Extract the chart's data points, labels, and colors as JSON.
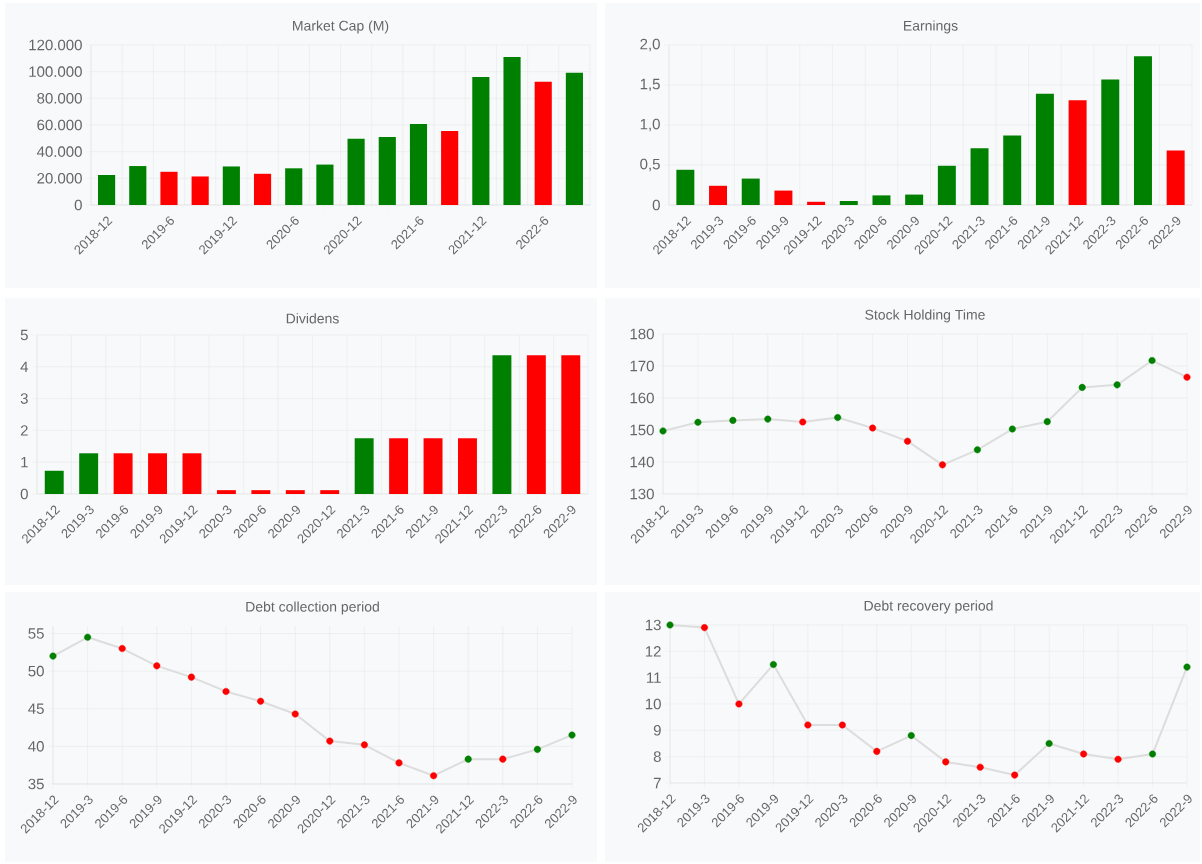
{
  "chart_data": [
    {
      "type": "bar",
      "title": "Market Cap (M)",
      "categories": [
        "2018-12",
        null,
        "2019-6",
        null,
        "2019-12",
        null,
        "2020-6",
        null,
        "2020-12",
        null,
        "2021-6",
        null,
        "2021-12",
        null,
        "2022-6",
        null
      ],
      "values": [
        22500,
        29200,
        24900,
        21400,
        28900,
        23400,
        27500,
        30300,
        49700,
        50900,
        60700,
        55500,
        96000,
        111000,
        92500,
        99100
      ],
      "colors": [
        "#008000",
        "#008000",
        "#ff0000",
        "#ff0000",
        "#008000",
        "#ff0000",
        "#008000",
        "#008000",
        "#008000",
        "#008000",
        "#008000",
        "#ff0000",
        "#008000",
        "#008000",
        "#ff0000",
        "#008000"
      ],
      "ylim": [
        0,
        120000
      ],
      "yticks": [
        0,
        {
          "value": 20000,
          "label": "20.000"
        },
        {
          "value": 40000,
          "label": "40.000"
        },
        {
          "value": 60000,
          "label": "60.000"
        },
        {
          "value": 80000,
          "label": "80.000"
        },
        {
          "value": 100000,
          "label": "100.000"
        },
        {
          "value": 120000,
          "label": "120.000"
        }
      ],
      "grid": true
    },
    {
      "type": "bar",
      "title": "Earnings",
      "categories": [
        "2018-12",
        "2019-3",
        "2019-6",
        "2019-9",
        "2019-12",
        "2020-3",
        "2020-6",
        "2020-9",
        "2020-12",
        "2021-3",
        "2021-6",
        "2021-9",
        "2021-12",
        "2022-3",
        "2022-6",
        "2022-9"
      ],
      "values": [
        0.44,
        0.24,
        0.33,
        0.18,
        0.04,
        0.05,
        0.12,
        0.13,
        0.49,
        0.71,
        0.87,
        1.39,
        1.31,
        1.57,
        1.86,
        0.68
      ],
      "colors": [
        "#008000",
        "#ff0000",
        "#008000",
        "#ff0000",
        "#ff0000",
        "#008000",
        "#008000",
        "#008000",
        "#008000",
        "#008000",
        "#008000",
        "#008000",
        "#ff0000",
        "#008000",
        "#008000",
        "#ff0000"
      ],
      "ylim": [
        0,
        2
      ],
      "yticks": [
        0,
        {
          "value": 0.5,
          "label": "0,5"
        },
        {
          "value": 1,
          "label": "1,0"
        },
        {
          "value": 1.5,
          "label": "1,5"
        },
        {
          "value": 2,
          "label": "2,0"
        }
      ],
      "grid": true
    },
    {
      "type": "bar",
      "title": "Dividens",
      "categories": [
        "2018-12",
        "2019-3",
        "2019-6",
        "2019-9",
        "2019-12",
        "2020-3",
        "2020-6",
        "2020-9",
        "2020-12",
        "2021-3",
        "2021-6",
        "2021-9",
        "2021-12",
        "2022-3",
        "2022-6",
        "2022-9"
      ],
      "values": [
        0.73,
        1.28,
        1.28,
        1.28,
        1.28,
        0.12,
        0.12,
        0.12,
        0.12,
        1.75,
        1.75,
        1.75,
        1.75,
        4.36,
        4.36,
        4.36
      ],
      "colors": [
        "#008000",
        "#008000",
        "#ff0000",
        "#ff0000",
        "#ff0000",
        "#ff0000",
        "#ff0000",
        "#ff0000",
        "#ff0000",
        "#008000",
        "#ff0000",
        "#ff0000",
        "#ff0000",
        "#008000",
        "#ff0000",
        "#ff0000"
      ],
      "ylim": [
        0,
        5
      ],
      "yticks": [
        0,
        1,
        2,
        3,
        4,
        5
      ],
      "grid": true
    },
    {
      "type": "line",
      "title": "Stock Holding Time",
      "categories": [
        "2018-12",
        "2019-3",
        "2019-6",
        "2019-9",
        "2019-12",
        "2020-3",
        "2020-6",
        "2020-9",
        "2020-12",
        "2021-3",
        "2021-6",
        "2021-9",
        "2021-12",
        "2022-3",
        "2022-6",
        "2022-9"
      ],
      "values": [
        149.7,
        152.4,
        153.0,
        153.4,
        152.5,
        153.9,
        150.6,
        146.5,
        139.1,
        143.8,
        150.3,
        152.6,
        163.3,
        164.1,
        171.7,
        166.5
      ],
      "color": "#dddddd",
      "colors": [
        "#008000",
        "#008000",
        "#008000",
        "#008000",
        "#ff0000",
        "#008000",
        "#ff0000",
        "#ff0000",
        "#ff0000",
        "#008000",
        "#008000",
        "#008000",
        "#008000",
        "#008000",
        "#008000",
        "#ff0000"
      ],
      "ylim": [
        130,
        180
      ],
      "yticks": [
        130,
        140,
        150,
        160,
        170,
        180
      ],
      "grid": true,
      "marker": "circle"
    },
    {
      "type": "line",
      "title": "Debt collection period",
      "categories": [
        "2018-12",
        "2019-3",
        "2019-6",
        "2019-9",
        "2019-12",
        "2020-3",
        "2020-6",
        "2020-9",
        "2020-12",
        "2021-3",
        "2021-6",
        "2021-9",
        "2021-12",
        "2022-3",
        "2022-6",
        "2022-9"
      ],
      "values": [
        52.0,
        54.5,
        53.0,
        50.7,
        49.2,
        47.3,
        46.0,
        44.3,
        40.7,
        40.2,
        37.8,
        36.1,
        38.3,
        38.3,
        39.6,
        41.5
      ],
      "color": "#dddddd",
      "colors": [
        "#008000",
        "#008000",
        "#ff0000",
        "#ff0000",
        "#ff0000",
        "#ff0000",
        "#ff0000",
        "#ff0000",
        "#ff0000",
        "#ff0000",
        "#ff0000",
        "#ff0000",
        "#008000",
        "#ff0000",
        "#008000",
        "#008000"
      ],
      "ylim": [
        35,
        56
      ],
      "yticks": [
        35,
        40,
        45,
        50,
        55
      ],
      "grid": true,
      "marker": "circle"
    },
    {
      "type": "line",
      "title": "Debt recovery period",
      "categories": [
        "2018-12",
        "2019-3",
        "2019-6",
        "2019-9",
        "2019-12",
        "2020-3",
        "2020-6",
        "2020-9",
        "2020-12",
        "2021-3",
        "2021-6",
        "2021-9",
        "2021-12",
        "2022-3",
        "2022-6",
        "2022-9"
      ],
      "values": [
        13.0,
        12.9,
        10.0,
        11.5,
        9.2,
        9.2,
        8.2,
        8.8,
        7.8,
        7.6,
        7.3,
        8.5,
        8.1,
        7.9,
        8.1,
        11.4
      ],
      "color": "#dddddd",
      "colors": [
        "#008000",
        "#ff0000",
        "#ff0000",
        "#008000",
        "#ff0000",
        "#ff0000",
        "#ff0000",
        "#008000",
        "#ff0000",
        "#ff0000",
        "#ff0000",
        "#008000",
        "#ff0000",
        "#ff0000",
        "#008000",
        "#008000"
      ],
      "ylim": [
        7,
        13
      ],
      "yticks": [
        7,
        8,
        9,
        10,
        11,
        12,
        13
      ],
      "grid": true,
      "marker": "circle"
    }
  ]
}
